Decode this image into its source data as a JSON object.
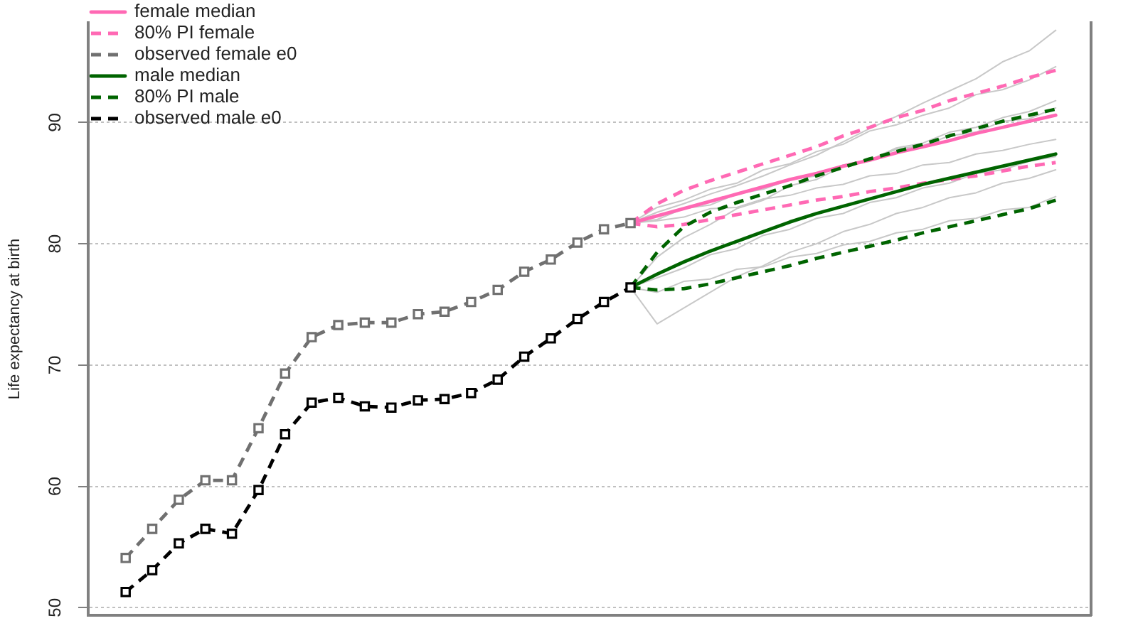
{
  "chart_data": {
    "type": "line",
    "ylabel": "Life expectancy at birth",
    "categories": [
      null,
      null,
      null,
      null,
      null,
      null,
      null,
      null,
      null,
      null,
      null,
      null,
      null,
      null,
      null,
      null,
      null,
      null,
      null,
      null,
      null,
      null,
      null,
      null,
      null,
      null,
      null,
      null,
      null,
      null,
      null,
      null,
      null,
      null,
      null,
      null
    ],
    "series": [
      {
        "color": "#c8c8c8",
        "values": [
          null,
          null,
          null,
          null,
          null,
          null,
          null,
          null,
          null,
          null,
          null,
          null,
          null,
          null,
          null,
          null,
          null,
          null,
          null,
          81.7,
          82.6,
          83.3,
          84.1,
          84.8,
          85.6,
          86.5,
          87.3,
          88.4,
          89.5,
          90.5,
          91.6,
          92.6,
          93.6,
          95.0,
          95.9,
          97.6
        ]
      },
      {
        "color": "#c8c8c8",
        "values": [
          null,
          null,
          null,
          null,
          null,
          null,
          null,
          null,
          null,
          null,
          null,
          null,
          null,
          null,
          null,
          null,
          null,
          null,
          null,
          81.7,
          83.0,
          83.6,
          84.5,
          85.0,
          86.1,
          86.6,
          87.6,
          88.2,
          89.3,
          89.8,
          90.6,
          91.2,
          92.3,
          92.7,
          93.5,
          94.6
        ]
      },
      {
        "color": "#c8c8c8",
        "values": [
          null,
          null,
          null,
          null,
          null,
          null,
          null,
          null,
          null,
          null,
          null,
          null,
          null,
          null,
          null,
          null,
          null,
          null,
          null,
          81.7,
          82.0,
          82.9,
          83.2,
          84.1,
          84.5,
          85.3,
          85.6,
          86.5,
          86.9,
          87.8,
          88.1,
          88.9,
          89.2,
          90.1,
          90.3,
          91.2
        ]
      },
      {
        "color": "#c8c8c8",
        "values": [
          null,
          null,
          null,
          null,
          null,
          null,
          null,
          null,
          null,
          null,
          null,
          null,
          null,
          null,
          null,
          null,
          null,
          null,
          null,
          81.7,
          81.9,
          82.2,
          82.9,
          83.0,
          83.7,
          84.0,
          84.6,
          84.9,
          85.6,
          85.8,
          86.5,
          86.7,
          87.4,
          87.7,
          88.2,
          88.6
        ]
      },
      {
        "color": "#c8c8c8",
        "values": [
          null,
          null,
          null,
          null,
          null,
          null,
          null,
          null,
          null,
          null,
          null,
          null,
          null,
          null,
          null,
          null,
          null,
          null,
          null,
          76.4,
          73.4,
          74.7,
          76.0,
          77.3,
          78.2,
          79.3,
          80.0,
          81.0,
          81.6,
          82.5,
          83.0,
          83.8,
          84.2,
          85.0,
          85.4,
          86.1
        ]
      },
      {
        "color": "#c8c8c8",
        "values": [
          null,
          null,
          null,
          null,
          null,
          null,
          null,
          null,
          null,
          null,
          null,
          null,
          null,
          null,
          null,
          null,
          null,
          null,
          null,
          76.4,
          78.9,
          80.5,
          81.6,
          82.9,
          83.6,
          84.8,
          85.3,
          86.4,
          86.9,
          87.9,
          88.3,
          89.2,
          89.6,
          90.4,
          90.9,
          91.8
        ]
      },
      {
        "color": "#c8c8c8",
        "values": [
          null,
          null,
          null,
          null,
          null,
          null,
          null,
          null,
          null,
          null,
          null,
          null,
          null,
          null,
          null,
          null,
          null,
          null,
          null,
          76.4,
          77.2,
          78.0,
          79.1,
          79.6,
          80.7,
          81.2,
          82.1,
          82.5,
          83.4,
          83.8,
          84.6,
          85.0,
          85.8,
          86.1,
          86.8,
          87.2
        ]
      },
      {
        "color": "#c8c8c8",
        "values": [
          null,
          null,
          null,
          null,
          null,
          null,
          null,
          null,
          null,
          null,
          null,
          null,
          null,
          null,
          null,
          null,
          null,
          null,
          null,
          76.4,
          76.0,
          76.9,
          77.1,
          77.9,
          78.1,
          78.9,
          79.2,
          79.9,
          80.2,
          80.9,
          81.2,
          81.9,
          82.1,
          82.8,
          83.0,
          83.9
        ]
      },
      {
        "name": "female median",
        "color": "#ff69b4",
        "values": [
          null,
          null,
          null,
          null,
          null,
          null,
          null,
          null,
          null,
          null,
          null,
          null,
          null,
          null,
          null,
          null,
          null,
          null,
          null,
          81.7,
          82.3,
          82.9,
          83.5,
          84.1,
          84.7,
          85.3,
          85.8,
          86.4,
          86.9,
          87.5,
          88.0,
          88.5,
          89.1,
          89.6,
          90.1,
          90.6
        ]
      },
      {
        "name": "80% PI female",
        "color": "#ff69b4",
        "line_style": "dashed",
        "values": [
          null,
          null,
          null,
          null,
          null,
          null,
          null,
          null,
          null,
          null,
          null,
          null,
          null,
          null,
          null,
          null,
          null,
          null,
          null,
          81.7,
          83.3,
          84.4,
          85.2,
          85.9,
          86.6,
          87.3,
          88.0,
          88.9,
          89.6,
          90.4,
          91.0,
          91.8,
          92.4,
          93.0,
          93.7,
          94.3
        ]
      },
      {
        "color": "#ff69b4",
        "line_style": "dashed",
        "values": [
          null,
          null,
          null,
          null,
          null,
          null,
          null,
          null,
          null,
          null,
          null,
          null,
          null,
          null,
          null,
          null,
          null,
          null,
          null,
          81.7,
          81.4,
          81.6,
          82.0,
          82.4,
          82.8,
          83.2,
          83.6,
          83.9,
          84.3,
          84.6,
          85.0,
          85.3,
          85.6,
          86.0,
          86.4,
          86.7
        ]
      },
      {
        "name": "observed female e0",
        "color": "#707070",
        "line_style": "dashed",
        "marker": "square",
        "values": [
          54.1,
          56.5,
          58.9,
          60.5,
          60.5,
          64.8,
          69.3,
          72.3,
          73.3,
          73.5,
          73.5,
          74.2,
          74.4,
          75.2,
          76.2,
          77.7,
          78.7,
          80.1,
          81.2,
          81.7,
          null,
          null,
          null,
          null,
          null,
          null,
          null,
          null,
          null,
          null,
          null,
          null,
          null,
          null,
          null,
          null
        ]
      },
      {
        "name": "male median",
        "color": "#006400",
        "values": [
          null,
          null,
          null,
          null,
          null,
          null,
          null,
          null,
          null,
          null,
          null,
          null,
          null,
          null,
          null,
          null,
          null,
          null,
          null,
          76.4,
          77.5,
          78.5,
          79.4,
          80.2,
          81.0,
          81.8,
          82.5,
          83.1,
          83.7,
          84.3,
          84.9,
          85.4,
          85.9,
          86.4,
          86.9,
          87.4
        ]
      },
      {
        "name": "80% PI male",
        "color": "#006400",
        "line_style": "dashed",
        "values": [
          null,
          null,
          null,
          null,
          null,
          null,
          null,
          null,
          null,
          null,
          null,
          null,
          null,
          null,
          null,
          null,
          null,
          null,
          null,
          76.4,
          79.3,
          81.4,
          82.6,
          83.4,
          84.1,
          84.8,
          85.6,
          86.3,
          87.0,
          87.6,
          88.2,
          88.9,
          89.5,
          90.1,
          90.6,
          91.1
        ]
      },
      {
        "color": "#006400",
        "line_style": "dashed",
        "values": [
          null,
          null,
          null,
          null,
          null,
          null,
          null,
          null,
          null,
          null,
          null,
          null,
          null,
          null,
          null,
          null,
          null,
          null,
          null,
          76.4,
          76.2,
          76.3,
          76.7,
          77.2,
          77.7,
          78.2,
          78.8,
          79.3,
          79.8,
          80.3,
          80.9,
          81.4,
          81.9,
          82.4,
          82.9,
          83.6
        ]
      },
      {
        "name": "observed male e0",
        "color": "#000000",
        "line_style": "dashed",
        "marker": "square",
        "values": [
          51.3,
          53.1,
          55.3,
          56.5,
          56.1,
          59.7,
          64.3,
          66.9,
          67.3,
          66.6,
          66.5,
          67.1,
          67.2,
          67.7,
          68.8,
          70.7,
          72.2,
          73.8,
          75.2,
          76.4,
          null,
          null,
          null,
          null,
          null,
          null,
          null,
          null,
          null,
          null,
          null,
          null,
          null,
          null,
          null,
          null
        ]
      }
    ],
    "ylim": [
      49.4,
      98.2
    ],
    "yticks": [
      50,
      60,
      70,
      80,
      90
    ],
    "grid": "y",
    "legend": "top left",
    "tick_labels": "y"
  }
}
